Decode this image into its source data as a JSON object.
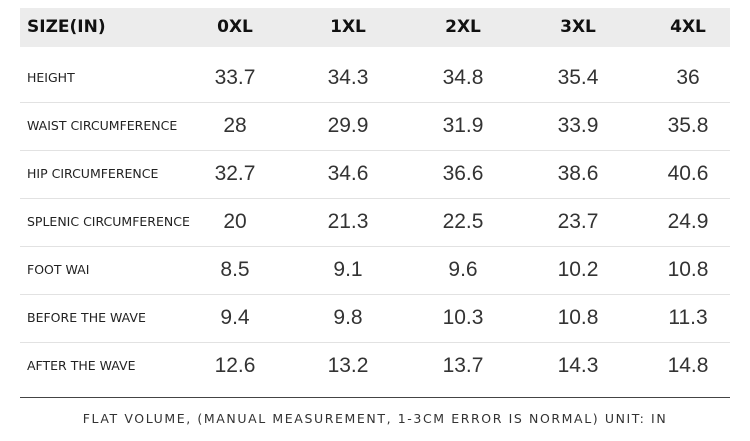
{
  "table": {
    "header": [
      "SIZE(IN)",
      "0XL",
      "1XL",
      "2XL",
      "3XL",
      "4XL"
    ],
    "rows": [
      [
        "HEIGHT",
        "33.7",
        "34.3",
        "34.8",
        "35.4",
        "36"
      ],
      [
        "WAIST CIRCUMFERENCE",
        "28",
        "29.9",
        "31.9",
        "33.9",
        "35.8"
      ],
      [
        "HIP CIRCUMFERENCE",
        "32.7",
        "34.6",
        "36.6",
        "38.6",
        "40.6"
      ],
      [
        "SPLENIC CIRCUMFERENCE",
        "20",
        "21.3",
        "22.5",
        "23.7",
        "24.9"
      ],
      [
        "FOOT WAI",
        "8.5",
        "9.1",
        "9.6",
        "10.2",
        "10.8"
      ],
      [
        "BEFORE THE WAVE",
        "9.4",
        "9.8",
        "10.3",
        "10.8",
        "11.3"
      ],
      [
        "AFTER THE WAVE",
        "12.6",
        "13.2",
        "13.7",
        "14.3",
        "14.8"
      ]
    ],
    "footer": "FLAT VOLUME, (MANUAL MEASUREMENT, 1-3CM ERROR IS NORMAL) UNIT: IN"
  }
}
